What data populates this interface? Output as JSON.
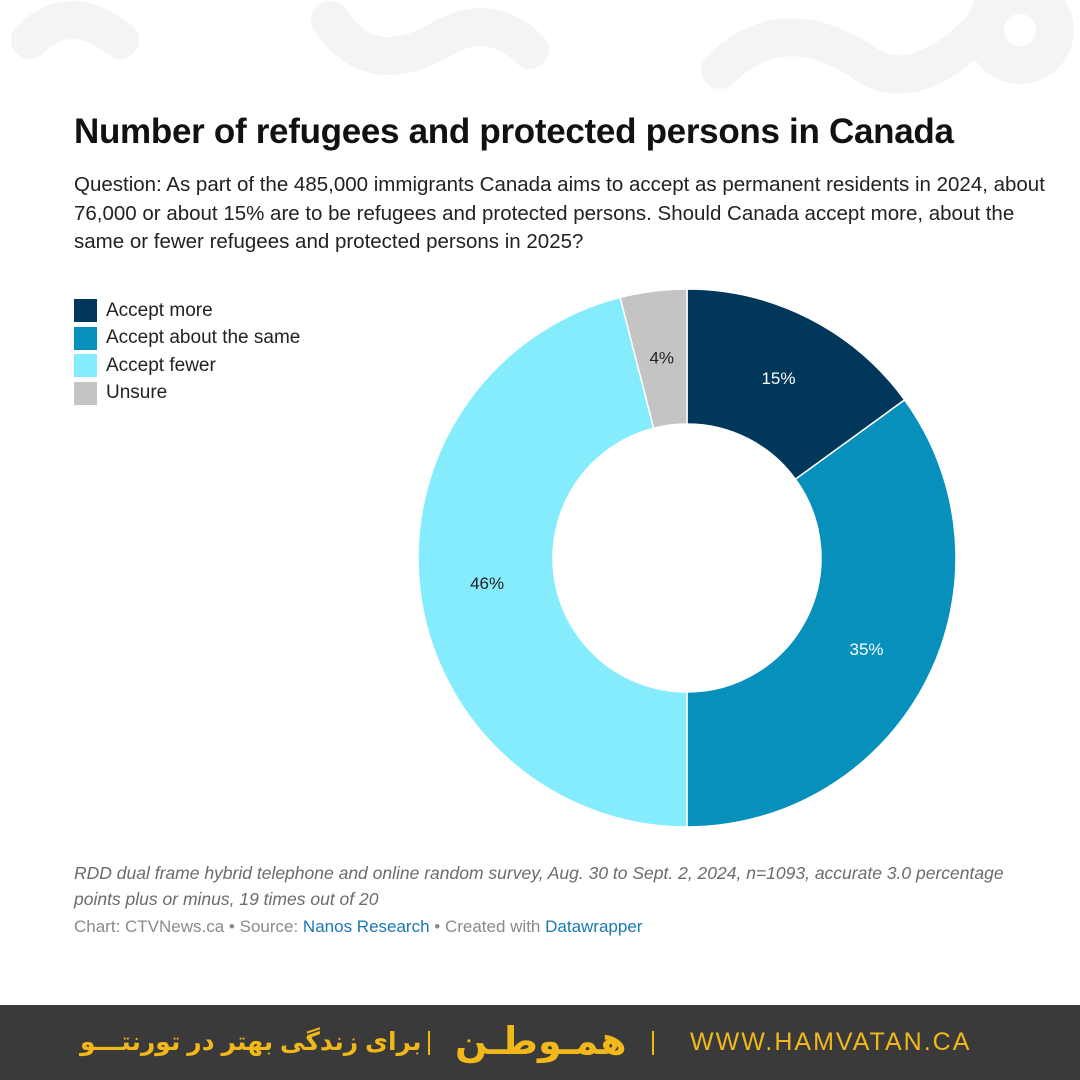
{
  "colors": {
    "accept_more": "#02375c",
    "accept_same": "#0690bb",
    "accept_fewer": "#84ecfd",
    "unsure": "#c4c4c4",
    "footer_bg": "#3a3a3a",
    "footer_accent": "#f2b81a"
  },
  "chart_data": {
    "type": "pie",
    "subtype": "donut",
    "title": "Number of refugees and protected persons in Canada",
    "subtitle": "Question: As part of the 485,000 immigrants Canada aims to accept as permanent residents in 2024, about 76,000 or about 15% are to be refugees and protected persons. Should Canada accept more, about the same or fewer refugees and protected persons in 2025?",
    "categories": [
      "Accept more",
      "Accept about the same",
      "Accept fewer",
      "Unsure"
    ],
    "values": [
      15,
      35,
      46,
      4
    ],
    "labels": [
      "15%",
      "35%",
      "46%",
      "4%"
    ],
    "colors": [
      "#02375c",
      "#0690bb",
      "#84ecfd",
      "#c4c4c4"
    ],
    "label_colors": [
      "#ffffff",
      "#ffffff",
      "#222222",
      "#222222"
    ],
    "legend_position": "top-left"
  },
  "legend": {
    "items": [
      {
        "label": "Accept more",
        "color": "#02375c"
      },
      {
        "label": "Accept about the same",
        "color": "#0690bb"
      },
      {
        "label": "Accept fewer",
        "color": "#84ecfd"
      },
      {
        "label": "Unsure",
        "color": "#c4c4c4"
      }
    ]
  },
  "notes": {
    "methodology": "RDD dual frame hybrid telephone and online random survey, Aug. 30 to Sept. 2, 2024, n=1093, accurate 3.0 percentage points plus or minus, 19 times out of 20",
    "chart_credit": "Chart: CTVNews.ca",
    "separator": " • ",
    "source_label": "Source: ",
    "source_name": "Nanos Research",
    "created_label": "Created with ",
    "created_name": "Datawrapper"
  },
  "footer": {
    "tagline": "برای زندگی بهتر در تورنتـــو",
    "logo_text": "همـوطـن",
    "url": "WWW.HAMVATAN.CA"
  }
}
